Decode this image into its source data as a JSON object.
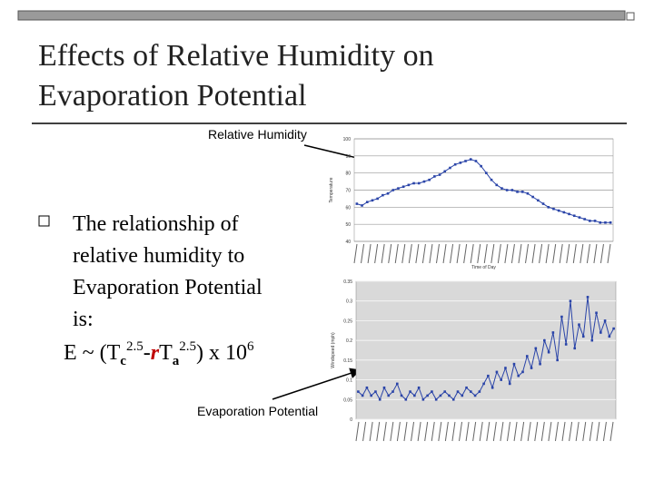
{
  "slide": {
    "title": [
      "Effects of Relative Humidity on",
      "Evaporation Potential"
    ],
    "bullet": [
      "The relationship of",
      "relative humidity to",
      "Evaporation Potential",
      "is:"
    ],
    "formula": [
      "E ~ (T",
      "c",
      "2.5",
      "-",
      "r",
      "T",
      "a",
      "2.5",
      ") x 10",
      "6"
    ],
    "annotations": [
      "Relative Humidity",
      "Evaporation Potential"
    ]
  },
  "chart_data": [
    {
      "type": "line",
      "y_label": "Temperature",
      "x_label": "Time of Day",
      "color": "#2a44a8",
      "ylim": [
        40,
        100
      ],
      "yticks": [
        40,
        50,
        60,
        70,
        80,
        90,
        100
      ],
      "grid": true,
      "values": [
        62,
        61,
        63,
        64,
        65,
        67,
        68,
        70,
        71,
        72,
        73,
        74,
        74,
        75,
        76,
        78,
        79,
        81,
        83,
        85,
        86,
        87,
        88,
        87,
        84,
        80,
        76,
        73,
        71,
        70,
        70,
        69,
        69,
        68,
        66,
        64,
        62,
        60,
        59,
        58,
        57,
        56,
        55,
        54,
        53,
        52,
        52,
        51,
        51,
        51
      ]
    },
    {
      "type": "line",
      "y_label": "Windspeed (mph)",
      "color": "#2a44a8",
      "ylim": [
        0,
        0.35
      ],
      "yticks": [
        0,
        0.05,
        0.1,
        0.15,
        0.2,
        0.25,
        0.3,
        0.35
      ],
      "grid": true,
      "values": [
        0.07,
        0.06,
        0.08,
        0.06,
        0.07,
        0.05,
        0.08,
        0.06,
        0.07,
        0.09,
        0.06,
        0.05,
        0.07,
        0.06,
        0.08,
        0.05,
        0.06,
        0.07,
        0.05,
        0.06,
        0.07,
        0.06,
        0.05,
        0.07,
        0.06,
        0.08,
        0.07,
        0.06,
        0.07,
        0.09,
        0.11,
        0.08,
        0.12,
        0.1,
        0.13,
        0.09,
        0.14,
        0.11,
        0.12,
        0.16,
        0.13,
        0.18,
        0.14,
        0.2,
        0.17,
        0.22,
        0.15,
        0.26,
        0.19,
        0.3,
        0.18,
        0.24,
        0.21,
        0.31,
        0.2,
        0.27,
        0.22,
        0.25,
        0.21,
        0.23
      ]
    }
  ]
}
